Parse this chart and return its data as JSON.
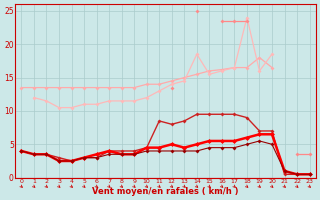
{
  "background_color": "#cce8e8",
  "grid_color": "#aacccc",
  "x_ticks": [
    0,
    1,
    2,
    3,
    4,
    5,
    6,
    7,
    8,
    9,
    10,
    11,
    12,
    13,
    14,
    15,
    16,
    17,
    18,
    19,
    20,
    21,
    22,
    23
  ],
  "xlabel": "Vent moyen/en rafales ( km/h )",
  "ylim": [
    0,
    26
  ],
  "yticks": [
    0,
    5,
    10,
    15,
    20,
    25
  ],
  "series": [
    {
      "name": "pale_flat",
      "color": "#ffaaaa",
      "linewidth": 0.9,
      "marker": "D",
      "markersize": 2.0,
      "data_y": [
        13.5,
        13.5,
        13.5,
        13.5,
        13.5,
        13.5,
        13.5,
        13.5,
        13.5,
        13.5,
        14.0,
        14.0,
        14.5,
        15.0,
        15.5,
        16.0,
        16.2,
        16.5,
        16.5,
        18.0,
        16.5,
        null,
        null,
        null
      ]
    },
    {
      "name": "pale_rising",
      "color": "#ffb8b8",
      "linewidth": 0.9,
      "marker": "D",
      "markersize": 2.0,
      "data_y": [
        null,
        12.0,
        11.5,
        10.5,
        10.5,
        11.0,
        11.0,
        11.5,
        11.5,
        11.5,
        12.0,
        13.0,
        14.0,
        14.5,
        18.5,
        15.5,
        16.0,
        16.5,
        24.0,
        16.0,
        18.5,
        null,
        null,
        null
      ]
    },
    {
      "name": "pink_spiky",
      "color": "#ff8888",
      "linewidth": 0.9,
      "marker": "D",
      "markersize": 2.0,
      "data_y": [
        null,
        null,
        null,
        null,
        null,
        null,
        null,
        null,
        null,
        null,
        null,
        null,
        13.5,
        null,
        25.0,
        null,
        23.5,
        23.5,
        23.5,
        null,
        null,
        null,
        3.5,
        3.5
      ]
    },
    {
      "name": "dark_red_peaks",
      "color": "#cc2222",
      "linewidth": 1.0,
      "marker": "D",
      "markersize": 2.0,
      "data_y": [
        4.0,
        3.5,
        3.5,
        3.0,
        2.5,
        3.0,
        3.0,
        4.0,
        4.0,
        4.0,
        4.5,
        8.5,
        8.0,
        8.5,
        9.5,
        9.5,
        9.5,
        9.5,
        9.0,
        7.0,
        7.0,
        0.5,
        0.5,
        0.5
      ]
    },
    {
      "name": "bright_red_thick",
      "color": "#ff0000",
      "linewidth": 1.8,
      "marker": "D",
      "markersize": 2.5,
      "data_y": [
        4.0,
        3.5,
        3.5,
        2.5,
        2.5,
        3.0,
        3.5,
        4.0,
        3.5,
        3.5,
        4.5,
        4.5,
        5.0,
        4.5,
        5.0,
        5.5,
        5.5,
        5.5,
        6.0,
        6.5,
        6.5,
        1.0,
        0.5,
        0.5
      ]
    },
    {
      "name": "dark_red_thin",
      "color": "#990000",
      "linewidth": 0.8,
      "marker": "D",
      "markersize": 2.0,
      "data_y": [
        4.0,
        3.5,
        3.5,
        2.5,
        2.5,
        3.0,
        3.0,
        3.5,
        3.5,
        3.5,
        4.0,
        4.0,
        4.0,
        4.0,
        4.0,
        4.5,
        4.5,
        4.5,
        5.0,
        5.5,
        5.0,
        1.0,
        0.5,
        0.5
      ]
    }
  ]
}
